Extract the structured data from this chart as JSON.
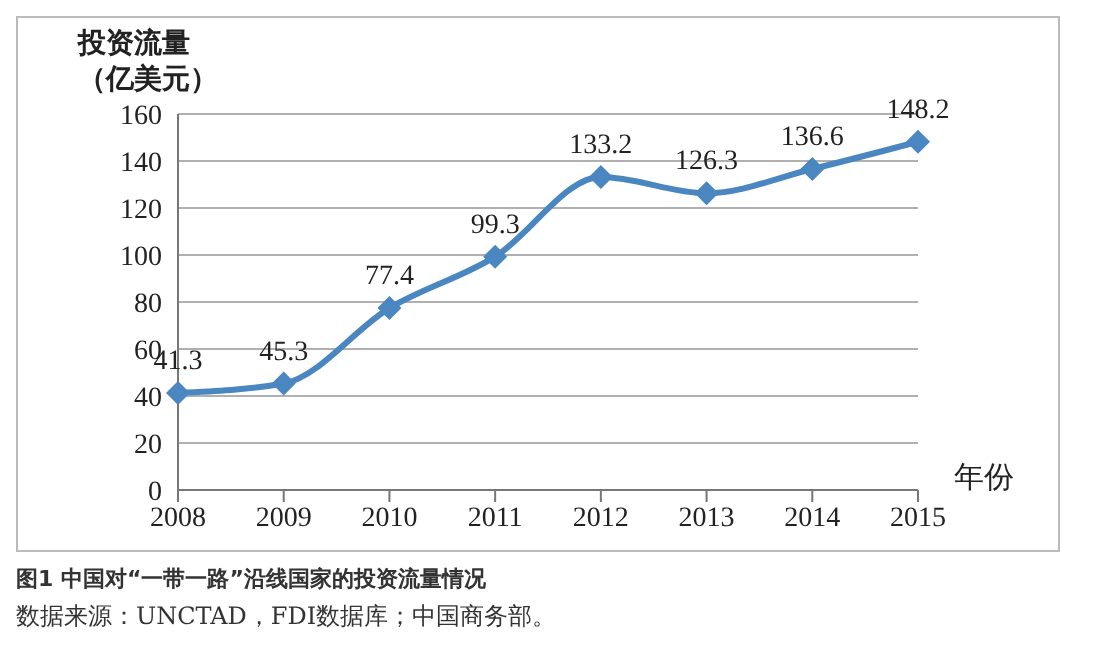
{
  "chart_data": {
    "type": "line",
    "title": "图1 中国对“一带一路”沿线国家的投资流量情况",
    "annotations": [
      "数据来源：UNCTAD，FDI数据库；中国商务部。"
    ],
    "ylabel": "投资流量（亿美元）",
    "xlabel": "年份",
    "categories": [
      "2008",
      "2009",
      "2010",
      "2011",
      "2012",
      "2013",
      "2014",
      "2015"
    ],
    "values": [
      41.3,
      45.3,
      77.4,
      99.3,
      133.2,
      126.3,
      136.6,
      148.2
    ],
    "color": "#4a86c0",
    "ylim": [
      0,
      160
    ],
    "yticks": [
      0,
      20,
      40,
      60,
      80,
      100,
      120,
      140,
      160
    ],
    "grid": "y",
    "marker": "diamond",
    "line_style": "solid",
    "data_labels": true
  }
}
